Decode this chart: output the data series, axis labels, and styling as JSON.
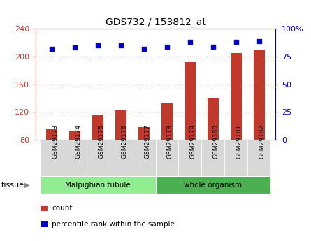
{
  "title": "GDS732 / 153812_at",
  "samples": [
    "GSM29173",
    "GSM29174",
    "GSM29175",
    "GSM29176",
    "GSM29177",
    "GSM29178",
    "GSM29179",
    "GSM29180",
    "GSM29181",
    "GSM29182"
  ],
  "counts": [
    95,
    93,
    115,
    122,
    98,
    133,
    192,
    140,
    205,
    210
  ],
  "percentiles": [
    82,
    83,
    85,
    85,
    82,
    84,
    88,
    84,
    88,
    89
  ],
  "left_ylim": [
    80,
    240
  ],
  "right_ylim": [
    0,
    100
  ],
  "left_yticks": [
    80,
    120,
    160,
    200,
    240
  ],
  "right_yticks": [
    0,
    25,
    50,
    75,
    100
  ],
  "right_yticklabels": [
    "0",
    "25",
    "50",
    "75",
    "100%"
  ],
  "bar_color": "#C0392B",
  "dot_color": "#0000CC",
  "bar_baseline": 80,
  "tissue_groups": [
    {
      "label": "Malpighian tubule",
      "start": 0,
      "end": 5,
      "color": "#90EE90"
    },
    {
      "label": "whole organism",
      "start": 5,
      "end": 10,
      "color": "#4CAF50"
    }
  ],
  "legend_items": [
    {
      "label": "count",
      "color": "#C0392B"
    },
    {
      "label": "percentile rank within the sample",
      "color": "#0000CC"
    }
  ],
  "grid_color": "black",
  "background_color": "#d8d8d8",
  "plot_bg": "white",
  "tissue_label": "tissue",
  "n_samples": 10
}
